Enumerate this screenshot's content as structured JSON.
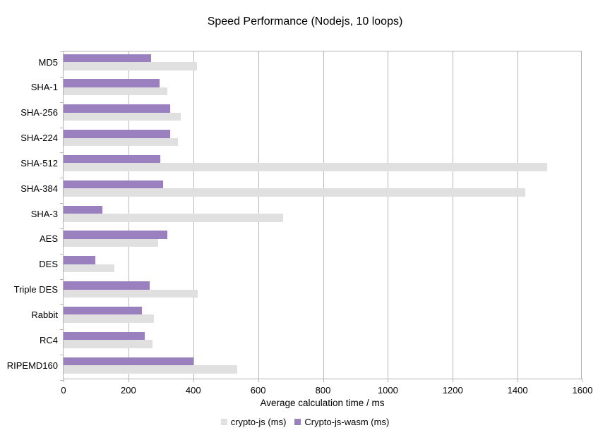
{
  "chart_data": {
    "type": "bar",
    "orientation": "horizontal",
    "title": "Speed Performance (Nodejs, 10 loops)",
    "xlabel": "Average calculation time / ms",
    "ylabel": "",
    "xlim": [
      0,
      1600
    ],
    "xticks": [
      0,
      200,
      400,
      600,
      800,
      1000,
      1200,
      1400,
      1600
    ],
    "grid": true,
    "legend_position": "bottom",
    "categories": [
      "MD5",
      "SHA-1",
      "SHA-256",
      "SHA-224",
      "SHA-512",
      "SHA-384",
      "SHA-3",
      "AES",
      "DES",
      "Triple DES",
      "Rabbit",
      "RC4",
      "RIPEMD160"
    ],
    "series": [
      {
        "name": "crypto-js (ms)",
        "color": "#e0e0e0",
        "values": [
          411,
          319,
          362,
          352,
          1492,
          1424,
          676,
          291,
          156,
          414,
          278,
          275,
          535
        ]
      },
      {
        "name": "Crypto-js-wasm (ms)",
        "color": "#9a80be",
        "values": [
          271,
          295,
          328,
          329,
          299,
          308,
          119,
          319,
          99,
          266,
          242,
          250,
          401
        ]
      }
    ],
    "colors": {
      "axis": "#b3b3b3",
      "grid": "#b9b9b9",
      "text": "#000000",
      "background": "#ffffff"
    }
  }
}
